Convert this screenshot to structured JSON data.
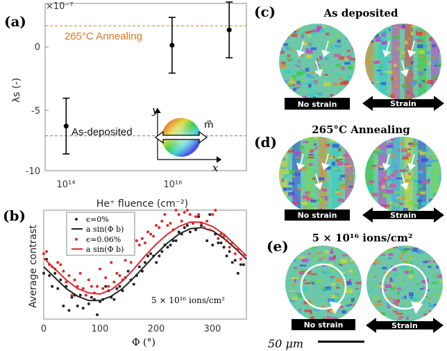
{
  "panel_labels": {
    "a": "(a)",
    "b": "(b)",
    "c": "(c)",
    "d": "(d)",
    "e": "(e)"
  },
  "panel_a": {
    "exponent_label": "×10⁻⁷",
    "ylabel": "λs (-)",
    "xlabel": "He⁺ fluence (cm⁻²)",
    "x_ticks": [
      "10¹⁴",
      "10¹⁶"
    ],
    "y_ticks": [
      "0",
      "-5",
      "-10"
    ],
    "annealing_label": "265°C Annealing",
    "deposited_label": "As-deposited",
    "wheel_y": "y",
    "wheel_x": "x",
    "wheel_m": "m⃗",
    "colors": {
      "annealing": "#d4782c",
      "deposited": "#777777"
    }
  },
  "panel_b": {
    "ylabel": "Average contrast",
    "xlabel": "Φ (°)",
    "x_ticks": [
      "0",
      "100",
      "200",
      "300"
    ],
    "legend": [
      "ϵ=0%",
      "a sin(Φ b)",
      "ϵ=0.06%",
      "a sin(Φ b)"
    ],
    "annotation": "5 × 10¹⁶ ions/cm²",
    "colors": {
      "eps0": "#222222",
      "eps006": "#e0262b"
    }
  },
  "panel_c": {
    "title": "As deposited",
    "left": "No strain",
    "right": "Strain"
  },
  "panel_d": {
    "title": "265°C Annealing",
    "left": "No strain",
    "right": "Strain"
  },
  "panel_e": {
    "title": "5 × 10¹⁶ ions/cm²",
    "left": "No strain",
    "right": "Strain"
  },
  "scalebar": "50 μm",
  "chart_data": [
    {
      "type": "scatter",
      "title": "",
      "xlabel": "He⁺ fluence (cm⁻²)",
      "ylabel": "λs (-)",
      "x_scale": "log",
      "xlim": [
        30000000000000.0,
        1e+17
      ],
      "ylim": [
        -10,
        2
      ],
      "series": [
        {
          "x": [
            70000000000000.0,
            5000000000000000.0,
            5e+16
          ],
          "y": [
            -6.8,
            -1.0,
            0.1
          ],
          "err": [
            2.0,
            2.0,
            2.0
          ]
        }
      ],
      "ref_lines": [
        {
          "label": "265°C Annealing",
          "y": 0.4
        },
        {
          "label": "As-deposited",
          "y": -7.5
        }
      ]
    },
    {
      "type": "scatter",
      "title": "",
      "xlabel": "Φ (°)",
      "ylabel": "Average contrast",
      "xlim": [
        0,
        360
      ],
      "ylim": [
        0,
        1
      ],
      "series": [
        {
          "name": "ϵ=0%",
          "x": [
            0,
            5,
            10,
            15,
            20,
            25,
            30,
            35,
            40,
            45,
            50,
            55,
            60,
            65,
            70,
            75,
            80,
            85,
            90,
            95,
            100,
            105,
            110,
            115,
            120,
            125,
            130,
            135,
            140,
            145,
            150,
            155,
            160,
            165,
            170,
            175,
            180,
            185,
            190,
            195,
            200,
            205,
            210,
            215,
            220,
            225,
            230,
            235,
            240,
            245,
            250,
            255,
            260,
            265,
            270,
            275,
            280,
            285,
            290,
            295,
            300,
            305,
            310,
            315,
            320,
            325,
            330,
            335,
            340,
            345,
            350,
            355
          ],
          "y": [
            0.42,
            0.55,
            0.4,
            0.3,
            0.42,
            0.28,
            0.36,
            0.12,
            0.3,
            0.08,
            0.2,
            0.22,
            0.12,
            0.22,
            0.1,
            0.22,
            0.14,
            0.2,
            0.18,
            0.04,
            0.16,
            0.18,
            0.3,
            0.26,
            0.2,
            0.18,
            0.28,
            0.3,
            0.26,
            0.38,
            0.44,
            0.36,
            0.32,
            0.4,
            0.48,
            0.44,
            0.52,
            0.58,
            0.6,
            0.58,
            0.52,
            0.58,
            0.62,
            0.68,
            0.66,
            0.68,
            0.72,
            0.72,
            0.8,
            0.78,
            0.84,
            0.86,
            0.8,
            0.88,
            0.82,
            0.94,
            0.86,
            0.84,
            0.72,
            0.96,
            0.68,
            0.78,
            0.7,
            0.7,
            0.66,
            0.58,
            0.62,
            0.52,
            0.54,
            0.42,
            0.5,
            0.5
          ]
        },
        {
          "name": "a sin(Φ b)",
          "x": [
            0,
            20,
            40,
            60,
            80,
            100,
            120,
            140,
            160,
            180,
            200,
            220,
            240,
            260,
            280,
            300,
            320,
            340,
            360
          ],
          "y": [
            0.48,
            0.38,
            0.28,
            0.21,
            0.17,
            0.17,
            0.21,
            0.28,
            0.38,
            0.49,
            0.6,
            0.7,
            0.78,
            0.83,
            0.84,
            0.81,
            0.74,
            0.65,
            0.55
          ]
        },
        {
          "name": "ϵ=0.06%",
          "x": [
            0,
            5,
            10,
            15,
            20,
            25,
            30,
            35,
            40,
            45,
            50,
            55,
            60,
            65,
            70,
            75,
            80,
            85,
            90,
            95,
            100,
            105,
            110,
            115,
            120,
            125,
            130,
            135,
            140,
            145,
            150,
            155,
            160,
            165,
            170,
            175,
            180,
            185,
            190,
            195,
            200,
            205,
            210,
            215,
            220,
            225,
            230,
            235,
            240,
            245,
            250,
            255,
            260,
            265,
            270,
            275,
            280,
            285,
            290,
            295,
            300,
            305,
            310,
            315,
            320,
            325,
            330,
            335,
            340,
            345,
            350,
            355
          ],
          "y": [
            0.6,
            0.62,
            0.5,
            0.48,
            0.46,
            0.52,
            0.5,
            0.44,
            0.34,
            0.4,
            0.22,
            0.36,
            0.3,
            0.42,
            0.28,
            0.22,
            0.36,
            0.3,
            0.24,
            0.3,
            0.46,
            0.28,
            0.38,
            0.3,
            0.52,
            0.34,
            0.42,
            0.4,
            0.36,
            0.54,
            0.6,
            0.52,
            0.62,
            0.72,
            0.68,
            0.74,
            0.7,
            0.8,
            0.78,
            0.76,
            0.86,
            0.84,
            0.9,
            0.96,
            0.86,
            0.88,
            0.82,
            1.0,
            0.96,
            0.9,
            0.98,
            1.0,
            0.96,
            0.88,
            0.94,
            0.96,
            0.88,
            0.84,
            0.9,
            0.82,
            0.96,
            1.0,
            0.74,
            0.78,
            0.76,
            0.72,
            0.66,
            0.7,
            0.6,
            0.64,
            0.55,
            0.58
          ]
        },
        {
          "name": "a sin(Φ b)",
          "x": [
            0,
            20,
            40,
            60,
            80,
            100,
            120,
            140,
            160,
            180,
            200,
            220,
            240,
            260,
            280,
            300,
            320,
            340,
            360
          ],
          "y": [
            0.56,
            0.46,
            0.36,
            0.28,
            0.24,
            0.23,
            0.27,
            0.35,
            0.46,
            0.58,
            0.69,
            0.78,
            0.85,
            0.89,
            0.89,
            0.85,
            0.78,
            0.68,
            0.58
          ]
        }
      ]
    }
  ]
}
